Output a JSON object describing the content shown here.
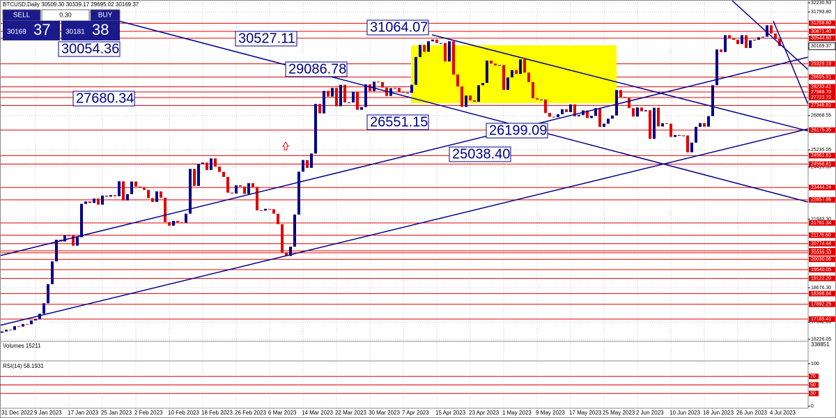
{
  "chart_data": {
    "type": "candlestick",
    "header": "BTCUSD,Daily  30509.30 30339.17 29695.02 30169.37",
    "trade_panel": {
      "sell": "SELL",
      "buy": "BUY",
      "lot": "0.30",
      "bid_big": "30169",
      "bid_small": "37",
      "ask_big": "30181",
      "ask_small": "38"
    },
    "up_color": "#00008b",
    "down_color": "#e00000",
    "categories": [
      "31 Dec 2022",
      null,
      null,
      null,
      null,
      null,
      null,
      null,
      null,
      "9 Jan 2023",
      null,
      null,
      null,
      null,
      null,
      null,
      null,
      "17 Jan 2023",
      null,
      null,
      null,
      null,
      null,
      null,
      null,
      "25 Jan 2023",
      null,
      null,
      null,
      null,
      null,
      null,
      null,
      "2 Feb 2023",
      null,
      null,
      null,
      null,
      null,
      null,
      null,
      "10 Feb 2023",
      null,
      null,
      null,
      null,
      null,
      null,
      null,
      "18 Feb 2023",
      null,
      null,
      null,
      null,
      null,
      null,
      null,
      "26 Feb 2023",
      null,
      null,
      null,
      null,
      null,
      null,
      null,
      "6 Mar 2023",
      null,
      null,
      null,
      null,
      null,
      null,
      null,
      "14 Mar 2023",
      null,
      null,
      null,
      null,
      null,
      null,
      null,
      "22 Mar 2023",
      null,
      null,
      null,
      null,
      null,
      null,
      null,
      "30 Mar 2023",
      null,
      null,
      null,
      null,
      null,
      null,
      null,
      "7 Apr 2023",
      null,
      null,
      null,
      null,
      null,
      null,
      null,
      "15 Apr 2023",
      null,
      null,
      null,
      null,
      null,
      null,
      null,
      "23 Apr 2023",
      null,
      null,
      null,
      null,
      null,
      null,
      null,
      "1 May 2023",
      null,
      null,
      null,
      null,
      null,
      null,
      null,
      "9 May 2023",
      null,
      null,
      null,
      null,
      null,
      null,
      null,
      "17 May 2023",
      null,
      null,
      null,
      null,
      null,
      null,
      null,
      "25 May 2023",
      null,
      null,
      null,
      null,
      null,
      null,
      null,
      "2 Jun 2023",
      null,
      null,
      null,
      null,
      null,
      null,
      null,
      "10 Jun 2023",
      null,
      null,
      null,
      null,
      null,
      null,
      null,
      "18 Jun 2023",
      null,
      null,
      null,
      null,
      null,
      null,
      null,
      "26 Jun 2023",
      null,
      null,
      null,
      null,
      null,
      null,
      null,
      "4 Jul 2023",
      null,
      null
    ],
    "close": [
      16540,
      16600,
      16680,
      16670,
      16850,
      16830,
      16950,
      16940,
      17120,
      17180,
      17440,
      17940,
      18850,
      19930,
      20960,
      20880,
      21170,
      21160,
      20680,
      21080,
      22670,
      22780,
      22710,
      22920,
      22630,
      23060,
      23010,
      23080,
      23030,
      23740,
      22830,
      23130,
      23730,
      23490,
      23430,
      23330,
      22940,
      22760,
      23260,
      22960,
      21800,
      21630,
      21860,
      21790,
      21780,
      22200,
      24330,
      23520,
      24570,
      24630,
      24280,
      24830,
      24440,
      24190,
      23950,
      23200,
      23160,
      23550,
      23490,
      23140,
      23650,
      23470,
      22360,
      22350,
      22430,
      22410,
      22200,
      21700,
      20360,
      20190,
      20630,
      22160,
      24200,
      24750,
      24380,
      25060,
      27420,
      26970,
      28040,
      27770,
      28180,
      27310,
      28330,
      27490,
      27490,
      28000,
      27140,
      27270,
      28350,
      28030,
      28480,
      28460,
      28200,
      27800,
      28170,
      28180,
      27990,
      27950,
      27950,
      28330,
      29650,
      30230,
      29900,
      30400,
      30480,
      30320,
      30320,
      29440,
      30400,
      28820,
      28250,
      27280,
      27820,
      27590,
      27520,
      28310,
      28420,
      29480,
      29340,
      29250,
      29270,
      28090,
      28680,
      29030,
      28850,
      29540,
      28910,
      28460,
      27690,
      27630,
      27630,
      26990,
      26810,
      26790,
      26930,
      27170,
      27030,
      27400,
      26830,
      26890,
      27110,
      26750,
      26850,
      27220,
      26330,
      26480,
      26720,
      26870,
      28080,
      27750,
      27700,
      27220,
      26820,
      27250,
      27070,
      27120,
      25760,
      27240,
      26350,
      26500,
      26480,
      25850,
      25940,
      25900,
      25920,
      25120,
      25580,
      26330,
      26510,
      26340,
      26840,
      28310,
      30010,
      29890,
      30690,
      30530,
      30470,
      30270,
      30690,
      30080,
      30450,
      30470,
      30590,
      30620,
      31160,
      30770,
      30510,
      30169.37
    ],
    "ylim": [
      16226.05,
      32230.93
    ],
    "yticks": [
      32230.93,
      {
        "value": 31793.8,
        "label": "31793.80"
      },
      26868.55,
      25235.05,
      24418.33,
      {
        "value": 21943.3,
        "label": "21943.30"
      },
      {
        "value": 18676.3,
        "label": "18676.30"
      },
      {
        "value": 17042.8,
        "label": "17042.80"
      },
      16226.05
    ],
    "levels": [
      {
        "value": 31258.8,
        "label": "31258.80"
      },
      {
        "value": 30871.4,
        "label": "30871.40"
      },
      {
        "value": 30544.6,
        "label": "30544.60"
      },
      29329.19,
      28695.91,
      28233.41,
      {
        "value": 27988.7,
        "label": "27988.70"
      },
      27722.72,
      27348.81,
      26175.35,
      24961.61,
      24558.81,
      23444.24,
      22857.86,
      21761.34,
      {
        "value": 21176.6,
        "label": "21176.60"
      },
      20774.44,
      20433.75,
      20339.33,
      20030.06,
      19540.05,
      {
        "value": 19122.2,
        "label": "19122.20"
      },
      18398.84,
      17892.25,
      17185.41
    ],
    "last_price": 30169.37,
    "annotations": [
      "30054.36",
      "30527.11",
      "31064.07",
      "29086.78",
      "27680.34",
      "26551.15",
      "26199.09",
      "25038.40"
    ],
    "volume_label": "Volumes 15211",
    "volume_max": "338851",
    "rsi_label": "RSI(14) 58.1931",
    "rsi_ylim": [
      0,
      100
    ],
    "rsi_ticks": [
      100,
      70,
      50,
      30,
      0
    ],
    "grid": true
  }
}
